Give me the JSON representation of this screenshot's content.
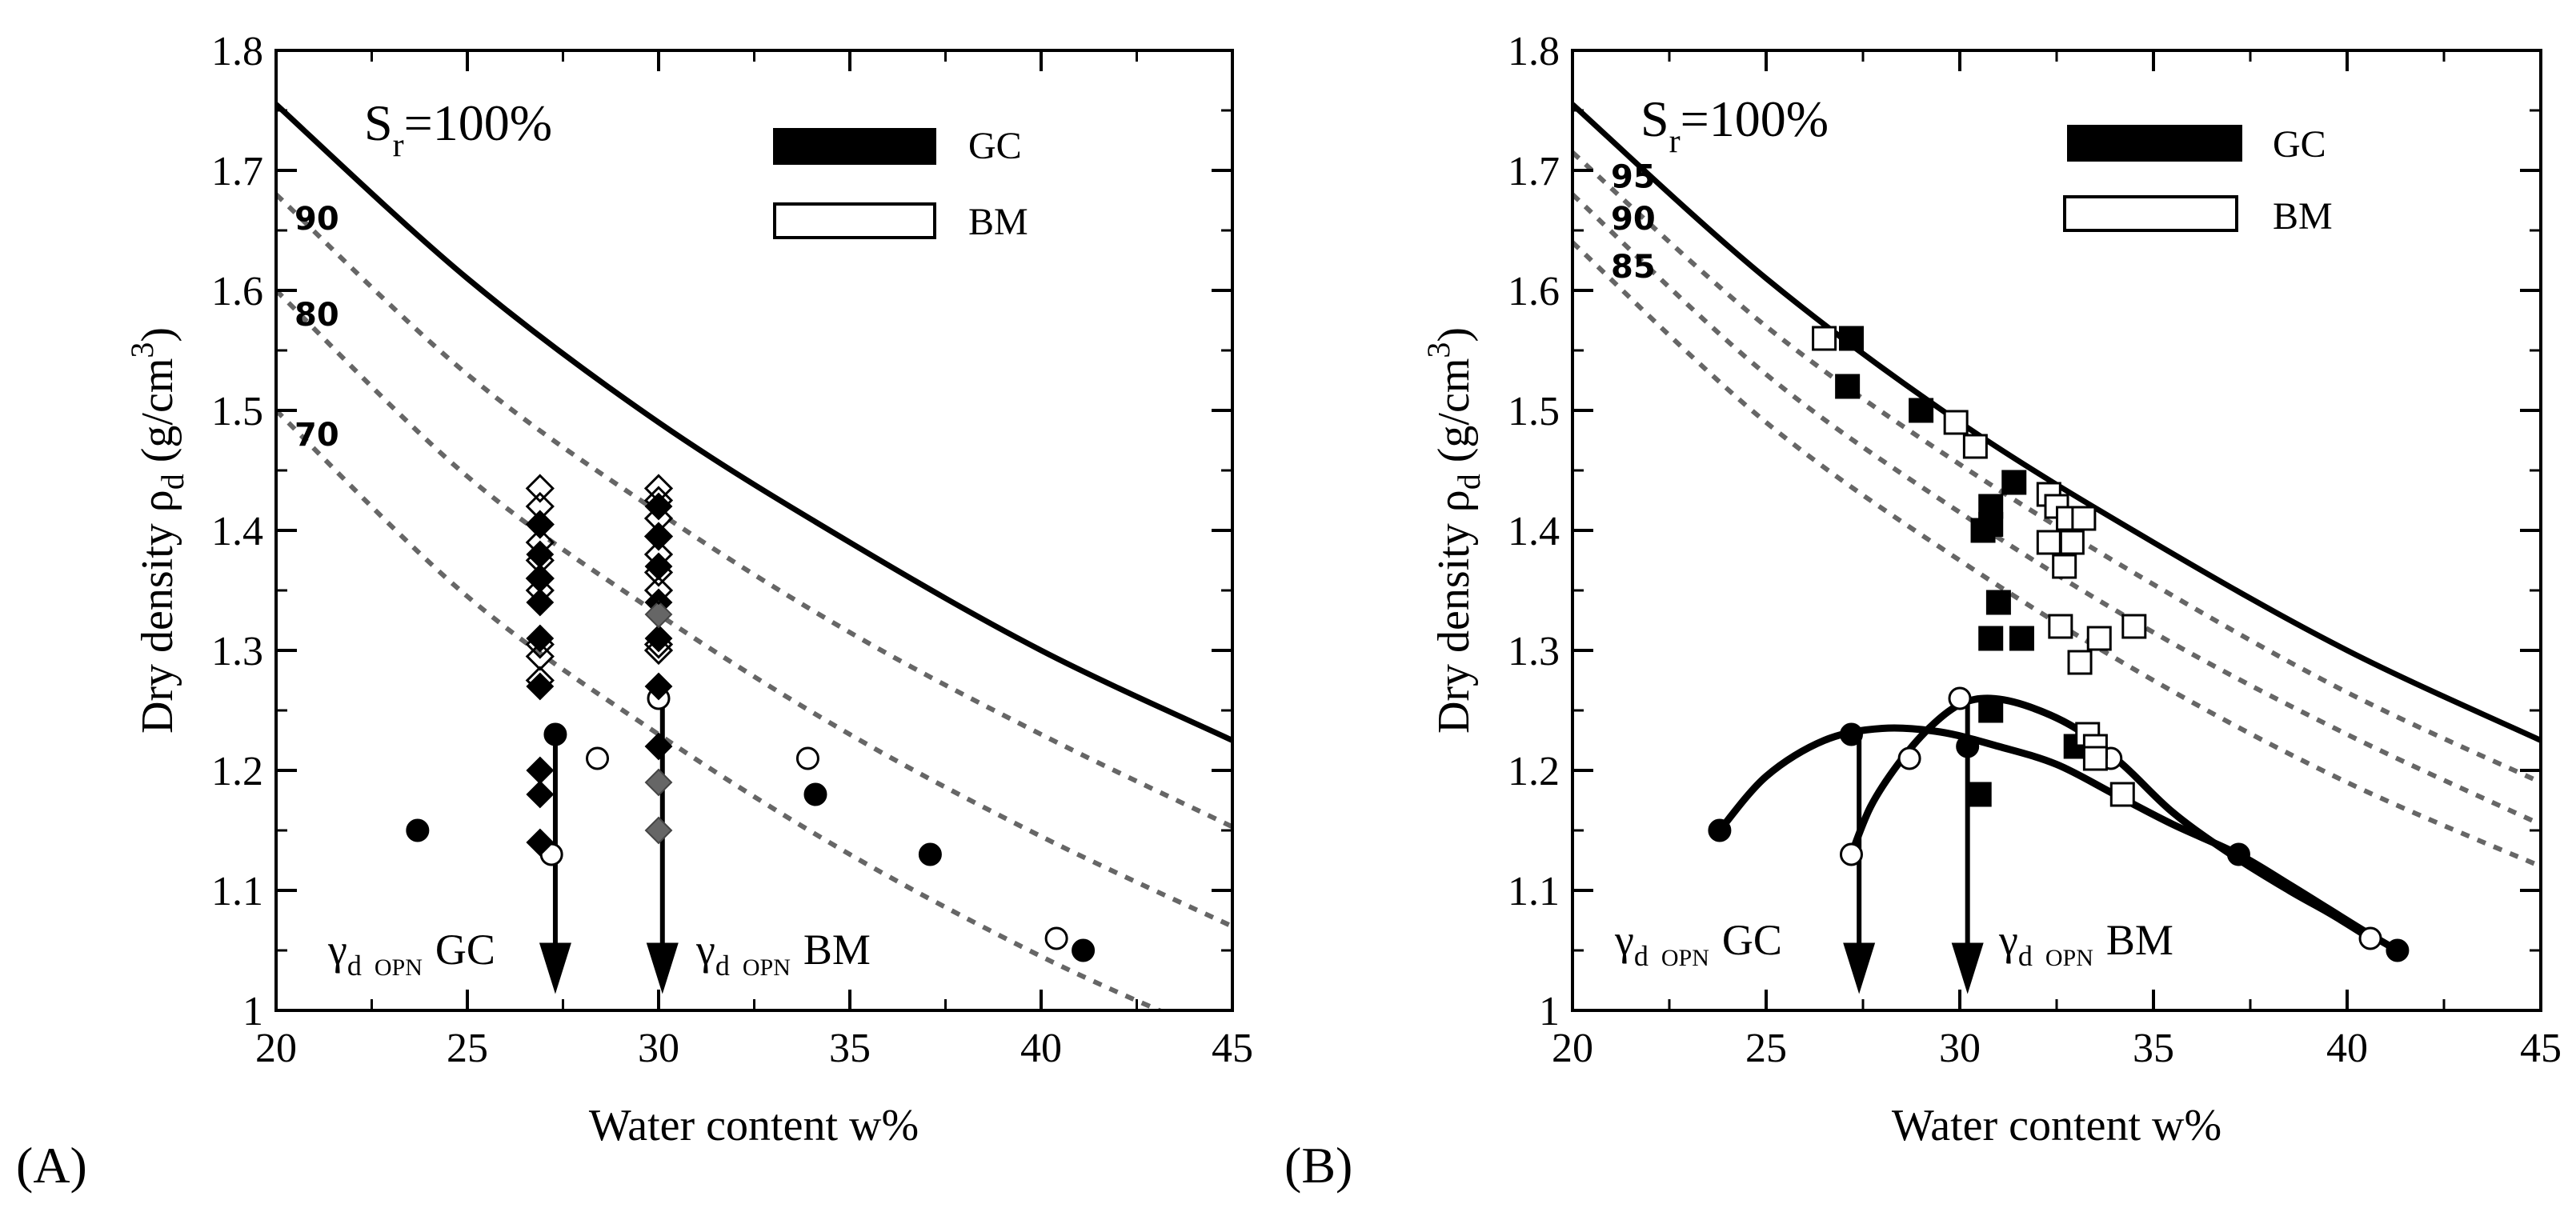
{
  "chart_data": [
    {
      "panel_label": "(A)",
      "type": "scatter",
      "xlabel": "Water content w%",
      "ylabel_prefix": "Dry density ",
      "ylabel_rho": "ρ",
      "ylabel_sub": "d",
      "ylabel_units": " (g/cm",
      "ylabel_sup": "3",
      "ylabel_close": ")",
      "xlim": [
        20,
        45
      ],
      "ylim": [
        1.0,
        1.8
      ],
      "xticks": [
        "20",
        "25",
        "30",
        "35",
        "40",
        "45"
      ],
      "yticks": [
        "1",
        "1.1",
        "1.2",
        "1.3",
        "1.4",
        "1.5",
        "1.6",
        "1.7",
        "1.8"
      ],
      "saturation_label": {
        "S": "S",
        "sub": "r",
        "value": "=100%"
      },
      "saturation_curve": [
        [
          20,
          1.755
        ],
        [
          25,
          1.61
        ],
        [
          30,
          1.49
        ],
        [
          35,
          1.39
        ],
        [
          40,
          1.3
        ],
        [
          45,
          1.225
        ]
      ],
      "partial_saturation_curves": [
        {
          "label": "90",
          "points": [
            [
              20,
              1.68
            ],
            [
              25,
              1.53
            ],
            [
              30,
              1.415
            ],
            [
              35,
              1.315
            ],
            [
              40,
              1.23
            ],
            [
              45,
              1.153
            ]
          ]
        },
        {
          "label": "80",
          "points": [
            [
              20,
              1.6
            ],
            [
              25,
              1.445
            ],
            [
              30,
              1.33
            ],
            [
              35,
              1.23
            ],
            [
              40,
              1.145
            ],
            [
              45,
              1.07
            ]
          ]
        },
        {
          "label": "70",
          "points": [
            [
              20,
              1.5
            ],
            [
              25,
              1.345
            ],
            [
              30,
              1.23
            ],
            [
              35,
              1.13
            ],
            [
              40,
              1.045
            ],
            [
              43.8,
              0.99
            ]
          ]
        }
      ],
      "legend": [
        {
          "label": "GC",
          "style": "filled"
        },
        {
          "label": "BM",
          "style": "open"
        }
      ],
      "series": [
        {
          "name": "GC proctor (filled circles)",
          "marker": "filled-circle",
          "points": [
            [
              23.7,
              1.15
            ],
            [
              27.3,
              1.23
            ],
            [
              34.1,
              1.18
            ],
            [
              37.1,
              1.13
            ],
            [
              41.1,
              1.05
            ]
          ]
        },
        {
          "name": "BM proctor (open circles)",
          "marker": "open-circle",
          "points": [
            [
              27.2,
              1.13
            ],
            [
              28.4,
              1.21
            ],
            [
              30.0,
              1.26
            ],
            [
              33.9,
              1.21
            ],
            [
              40.4,
              1.06
            ]
          ]
        },
        {
          "name": "GC specimens (filled diamonds)",
          "marker": "filled-diamond",
          "points": [
            [
              26.9,
              1.14
            ],
            [
              26.9,
              1.18
            ],
            [
              26.9,
              1.2
            ],
            [
              26.9,
              1.27
            ],
            [
              26.9,
              1.31
            ],
            [
              26.9,
              1.34
            ],
            [
              26.9,
              1.36
            ],
            [
              26.9,
              1.38
            ],
            [
              26.9,
              1.405
            ],
            [
              30.0,
              1.22
            ],
            [
              30.0,
              1.27
            ],
            [
              30.0,
              1.31
            ],
            [
              30.0,
              1.34
            ],
            [
              30.0,
              1.37
            ],
            [
              30.0,
              1.395
            ],
            [
              30.0,
              1.42
            ]
          ]
        },
        {
          "name": "GC specimens (gray diamonds)",
          "marker": "gray-diamond",
          "points": [
            [
              30.0,
              1.15
            ],
            [
              30.0,
              1.19
            ],
            [
              30.0,
              1.33
            ]
          ]
        },
        {
          "name": "BM specimens (open diamonds)",
          "marker": "open-diamond",
          "points": [
            [
              26.9,
              1.275
            ],
            [
              26.9,
              1.295
            ],
            [
              26.9,
              1.305
            ],
            [
              26.9,
              1.35
            ],
            [
              26.9,
              1.36
            ],
            [
              26.9,
              1.375
            ],
            [
              26.9,
              1.39
            ],
            [
              26.9,
              1.405
            ],
            [
              26.9,
              1.42
            ],
            [
              26.9,
              1.435
            ],
            [
              30.0,
              1.3
            ],
            [
              30.0,
              1.305
            ],
            [
              30.0,
              1.35
            ],
            [
              30.0,
              1.365
            ],
            [
              30.0,
              1.38
            ],
            [
              30.0,
              1.395
            ],
            [
              30.0,
              1.41
            ],
            [
              30.0,
              1.425
            ],
            [
              30.0,
              1.435
            ]
          ]
        }
      ],
      "arrows": [
        {
          "x": 27.3,
          "y_from": 1.23,
          "y_to": 1.015,
          "label_gamma": "γ",
          "label_sub": "d",
          "label_opn": "OPN",
          "label_name": "GC"
        },
        {
          "x": 30.1,
          "y_from": 1.265,
          "y_to": 1.015,
          "label_gamma": "γ",
          "label_sub": "d",
          "label_opn": "OPN",
          "label_name": "BM"
        }
      ]
    },
    {
      "panel_label": "(B)",
      "type": "scatter",
      "xlabel": "Water content w%",
      "ylabel_prefix": "Dry density ",
      "ylabel_rho": "ρ",
      "ylabel_sub": "d",
      "ylabel_units": " (g/cm",
      "ylabel_sup": "3",
      "ylabel_close": ")",
      "xlim": [
        20,
        45
      ],
      "ylim": [
        1.0,
        1.8
      ],
      "xticks": [
        "20",
        "25",
        "30",
        "35",
        "40",
        "45"
      ],
      "yticks": [
        "1",
        "1.1",
        "1.2",
        "1.3",
        "1.4",
        "1.5",
        "1.6",
        "1.7",
        "1.8"
      ],
      "saturation_label": {
        "S": "S",
        "sub": "r",
        "value": "=100%"
      },
      "saturation_curve": [
        [
          20,
          1.755
        ],
        [
          25,
          1.61
        ],
        [
          30,
          1.49
        ],
        [
          35,
          1.39
        ],
        [
          40,
          1.3
        ],
        [
          45,
          1.225
        ]
      ],
      "partial_saturation_curves": [
        {
          "label": "95",
          "points": [
            [
              20,
              1.715
            ],
            [
              25,
              1.57
            ],
            [
              30,
              1.455
            ],
            [
              35,
              1.355
            ],
            [
              40,
              1.265
            ],
            [
              45,
              1.19
            ]
          ]
        },
        {
          "label": "90",
          "points": [
            [
              20,
              1.68
            ],
            [
              25,
              1.53
            ],
            [
              30,
              1.415
            ],
            [
              35,
              1.315
            ],
            [
              40,
              1.23
            ],
            [
              45,
              1.155
            ]
          ]
        },
        {
          "label": "85",
          "points": [
            [
              20,
              1.64
            ],
            [
              25,
              1.49
            ],
            [
              30,
              1.375
            ],
            [
              35,
              1.275
            ],
            [
              40,
              1.19
            ],
            [
              45,
              1.12
            ]
          ]
        }
      ],
      "legend": [
        {
          "label": "GC",
          "style": "filled"
        },
        {
          "label": "BM",
          "style": "open"
        }
      ],
      "series": [
        {
          "name": "GC proctor (filled circles)",
          "marker": "filled-circle",
          "points": [
            [
              23.8,
              1.15
            ],
            [
              27.2,
              1.23
            ],
            [
              30.2,
              1.22
            ],
            [
              34.2,
              1.18
            ],
            [
              37.2,
              1.13
            ],
            [
              41.3,
              1.05
            ]
          ]
        },
        {
          "name": "BM proctor (open circles)",
          "marker": "open-circle",
          "points": [
            [
              27.2,
              1.13
            ],
            [
              28.7,
              1.21
            ],
            [
              30.0,
              1.26
            ],
            [
              33.9,
              1.21
            ],
            [
              40.6,
              1.06
            ]
          ]
        },
        {
          "name": "GC specimens (filled squares)",
          "marker": "filled-square",
          "points": [
            [
              27.1,
              1.52
            ],
            [
              27.2,
              1.56
            ],
            [
              29.0,
              1.5
            ],
            [
              30.6,
              1.4
            ],
            [
              30.8,
              1.42
            ],
            [
              30.8,
              1.405
            ],
            [
              31.4,
              1.44
            ],
            [
              31.0,
              1.34
            ],
            [
              30.8,
              1.31
            ],
            [
              31.6,
              1.31
            ],
            [
              30.8,
              1.25
            ],
            [
              30.5,
              1.18
            ],
            [
              33.0,
              1.22
            ]
          ]
        },
        {
          "name": "BM specimens (open squares)",
          "marker": "open-square",
          "points": [
            [
              26.5,
              1.56
            ],
            [
              29.9,
              1.49
            ],
            [
              30.4,
              1.47
            ],
            [
              32.3,
              1.43
            ],
            [
              32.5,
              1.42
            ],
            [
              32.8,
              1.41
            ],
            [
              33.2,
              1.41
            ],
            [
              32.3,
              1.39
            ],
            [
              32.9,
              1.39
            ],
            [
              32.7,
              1.37
            ],
            [
              32.6,
              1.32
            ],
            [
              33.6,
              1.31
            ],
            [
              34.5,
              1.32
            ],
            [
              33.1,
              1.29
            ],
            [
              33.3,
              1.23
            ],
            [
              33.5,
              1.22
            ],
            [
              33.5,
              1.21
            ],
            [
              34.2,
              1.18
            ]
          ]
        }
      ],
      "compaction_curves": [
        {
          "name": "GC",
          "points": [
            [
              23.8,
              1.15
            ],
            [
              25.0,
              1.195
            ],
            [
              26.5,
              1.225
            ],
            [
              28.0,
              1.235
            ],
            [
              29.5,
              1.232
            ],
            [
              31.0,
              1.22
            ],
            [
              32.5,
              1.205
            ],
            [
              34.0,
              1.18
            ],
            [
              35.5,
              1.155
            ],
            [
              37.2,
              1.13
            ],
            [
              38.5,
              1.105
            ],
            [
              39.5,
              1.085
            ],
            [
              40.5,
              1.065
            ],
            [
              41.3,
              1.05
            ]
          ]
        },
        {
          "name": "BM",
          "points": [
            [
              27.2,
              1.13
            ],
            [
              27.7,
              1.17
            ],
            [
              28.4,
              1.205
            ],
            [
              29.2,
              1.235
            ],
            [
              30.0,
              1.255
            ],
            [
              30.8,
              1.26
            ],
            [
              31.8,
              1.253
            ],
            [
              33.0,
              1.235
            ],
            [
              34.2,
              1.205
            ],
            [
              35.5,
              1.165
            ],
            [
              37.0,
              1.13
            ],
            [
              38.5,
              1.1
            ],
            [
              39.6,
              1.08
            ],
            [
              40.6,
              1.06
            ]
          ]
        }
      ],
      "arrows": [
        {
          "x": 27.4,
          "y_from": 1.23,
          "y_to": 1.015,
          "label_gamma": "γ",
          "label_sub": "d",
          "label_opn": "OPN",
          "label_name": "GC"
        },
        {
          "x": 30.2,
          "y_from": 1.26,
          "y_to": 1.015,
          "label_gamma": "γ",
          "label_sub": "d",
          "label_opn": "OPN",
          "label_name": "BM"
        }
      ]
    }
  ]
}
